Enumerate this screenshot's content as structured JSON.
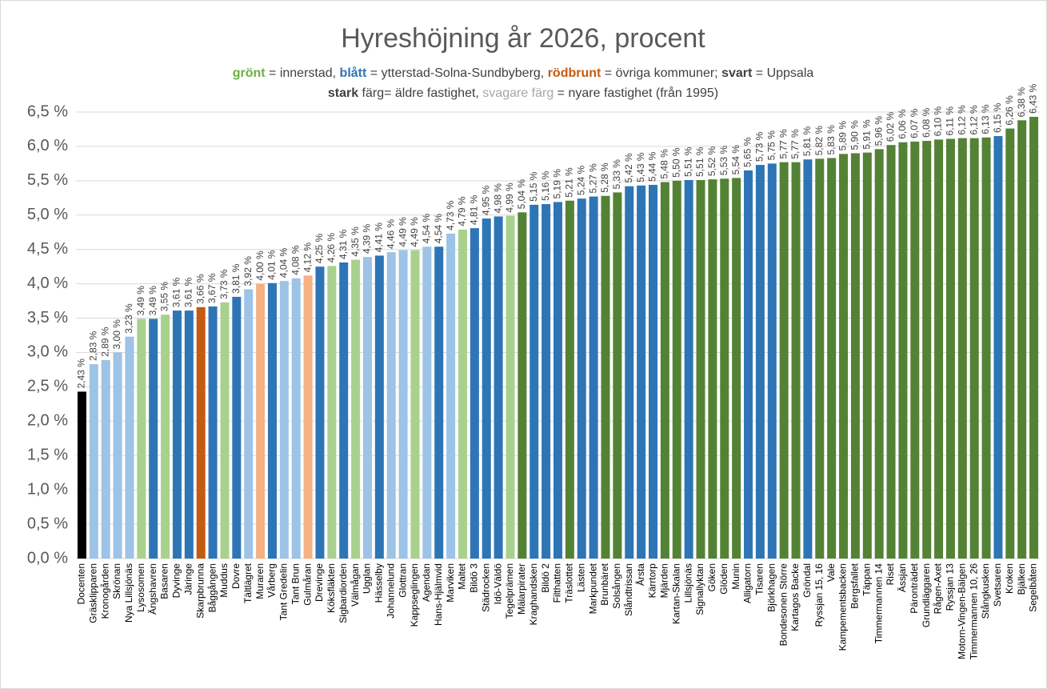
{
  "chart_data": {
    "type": "bar",
    "title": "Hyreshöjning år 2026, procent",
    "subtitle_lines": [
      [
        {
          "text": "grönt",
          "color": "#70ad47",
          "bold": true
        },
        {
          "text": " = innerstad, ",
          "color": "#404040",
          "bold": false
        },
        {
          "text": "blått",
          "color": "#2e75b6",
          "bold": true
        },
        {
          "text": " = ytterstad-Solna-Sundbyberg, ",
          "color": "#404040",
          "bold": false
        },
        {
          "text": "rödbrunt",
          "color": "#c55a11",
          "bold": true
        },
        {
          "text": " = övriga kommuner; ",
          "color": "#404040",
          "bold": false
        },
        {
          "text": "svart",
          "color": "#404040",
          "bold": true
        },
        {
          "text": " = Uppsala",
          "color": "#404040",
          "bold": false
        }
      ],
      [
        {
          "text": "stark",
          "color": "#404040",
          "bold": true
        },
        {
          "text": " färg= äldre fastighet, ",
          "color": "#404040",
          "bold": false
        },
        {
          "text": "svagare färg",
          "color": "#a6a6a6",
          "bold": false
        },
        {
          "text": " = nyare fastighet (från 1995)",
          "color": "#404040",
          "bold": false
        }
      ]
    ],
    "categories": [
      "Docenten",
      "Gräsklipparen",
      "Kronogården",
      "Skrönan",
      "Nya Lillsjönäs",
      "Lysosomen",
      "Ängshavren",
      "Basaren",
      "Dyvinge",
      "Järinge",
      "Skarpbrunna",
      "Båggången",
      "Muddus",
      "Dovre",
      "Tältlägret",
      "Muraren",
      "Vårberg",
      "Tant Gredelin",
      "Tant Brun",
      "Gulmåran",
      "Drevinge",
      "Köksfläkten",
      "Sigbardiorden",
      "Välmågan",
      "Ugglan",
      "Hässelby",
      "Johannelund",
      "Glottran",
      "Kappseglingen",
      "Agendan",
      "Hans-Hjälmvid",
      "Marviken",
      "Maltet",
      "Bildö 3",
      "Städrocken",
      "Idö-Väldö",
      "Tegelprämen",
      "Mälarpirater",
      "Kraghandsken",
      "Bildö 2",
      "Filthatten",
      "Träslottet",
      "Lästen",
      "Markpundet",
      "Brunbäret",
      "Solsången",
      "Slåndtrissan",
      "Årsta",
      "Kärrtorp",
      "Mjärden",
      "Kartan-Skalan",
      "Lillsjönäs",
      "Signallyktan",
      "Göken",
      "Glöden",
      "Munin",
      "Alligatorn",
      "Tisaren",
      "Björkhagen",
      "Bondesonen Större",
      "Kartagos Backe",
      "Gröndal",
      "Ryssjan 15, 16",
      "Vale",
      "Kampementsbacken",
      "Bergsfallet",
      "Täppan",
      "Timmermannen 14",
      "Riset",
      "Ässjan",
      "Päronträdet",
      "Grundläggaren",
      "Rågen-Axet",
      "Ryssjan 13",
      "Motorn-Vingen-Bälgen",
      "Timmermannen 10, 26",
      "Stångkusken",
      "Svetsaren",
      "Kroken",
      "Bjälken",
      "Segelbåten"
    ],
    "values": [
      2.43,
      2.83,
      2.89,
      3.0,
      3.23,
      3.49,
      3.49,
      3.55,
      3.61,
      3.61,
      3.66,
      3.67,
      3.73,
      3.81,
      3.92,
      4.0,
      4.01,
      4.04,
      4.08,
      4.12,
      4.25,
      4.26,
      4.31,
      4.35,
      4.39,
      4.41,
      4.46,
      4.49,
      4.49,
      4.54,
      4.54,
      4.73,
      4.79,
      4.81,
      4.95,
      4.98,
      4.99,
      5.04,
      5.15,
      5.16,
      5.19,
      5.21,
      5.24,
      5.27,
      5.28,
      5.33,
      5.42,
      5.43,
      5.44,
      5.48,
      5.5,
      5.51,
      5.51,
      5.52,
      5.53,
      5.54,
      5.65,
      5.73,
      5.75,
      5.77,
      5.77,
      5.81,
      5.82,
      5.83,
      5.89,
      5.9,
      5.91,
      5.96,
      6.02,
      6.06,
      6.07,
      6.08,
      6.1,
      6.11,
      6.12,
      6.12,
      6.13,
      6.15,
      6.26,
      6.38,
      6.43
    ],
    "value_labels": [
      "2,43 %",
      "2,83 %",
      "2,89 %",
      "3,00 %",
      "3,23 %",
      "3,49 %",
      "3,49 %",
      "3,55 %",
      "3,61 %",
      "3,61 %",
      "3,66 %",
      "3,67 %",
      "3,73 %",
      "3,81 %",
      "3,92 %",
      "4,00 %",
      "4,01 %",
      "4,04 %",
      "4,08 %",
      "4,12 %",
      "4,25 %",
      "4,26 %",
      "4,31 %",
      "4,35 %",
      "4,39 %",
      "4,41 %",
      "4,46 %",
      "4,49 %",
      "4,49 %",
      "4,54 %",
      "4,54 %",
      "4,73 %",
      "4,79 %",
      "4,81 %",
      "4,95 %",
      "4,98 %",
      "4,99 %",
      "5,04 %",
      "5,15 %",
      "5,16 %",
      "5,19 %",
      "5,21 %",
      "5,24 %",
      "5,27 %",
      "5,28 %",
      "5,33 %",
      "5,42 %",
      "5,43 %",
      "5,44 %",
      "5,48 %",
      "5,50 %",
      "5,51 %",
      "5,51 %",
      "5,52 %",
      "5,53 %",
      "5,54 %",
      "5,65 %",
      "5,73 %",
      "5,75 %",
      "5,77 %",
      "5,77 %",
      "5,81 %",
      "5,82 %",
      "5,83 %",
      "5,89 %",
      "5,90 %",
      "5,91 %",
      "5,96 %",
      "6,02 %",
      "6,06 %",
      "6,07 %",
      "6,08 %",
      "6,10 %",
      "6,11 %",
      "6,12 %",
      "6,12 %",
      "6,13 %",
      "6,15 %",
      "6,26 %",
      "6,38 %",
      "6,43 %"
    ],
    "colors": [
      "#000000",
      "#9dc3e6",
      "#9dc3e6",
      "#9dc3e6",
      "#9dc3e6",
      "#a9d18e",
      "#2e75b6",
      "#a9d18e",
      "#2e75b6",
      "#2e75b6",
      "#c55a11",
      "#2e75b6",
      "#a9d18e",
      "#2e75b6",
      "#9dc3e6",
      "#f4b183",
      "#2e75b6",
      "#9dc3e6",
      "#9dc3e6",
      "#f4b183",
      "#2e75b6",
      "#a9d18e",
      "#2e75b6",
      "#a9d18e",
      "#9dc3e6",
      "#2e75b6",
      "#9dc3e6",
      "#9dc3e6",
      "#a9d18e",
      "#9dc3e6",
      "#2e75b6",
      "#9dc3e6",
      "#a9d18e",
      "#2e75b6",
      "#2e75b6",
      "#2e75b6",
      "#a9d18e",
      "#548235",
      "#2e75b6",
      "#2e75b6",
      "#2e75b6",
      "#548235",
      "#2e75b6",
      "#2e75b6",
      "#548235",
      "#548235",
      "#2e75b6",
      "#2e75b6",
      "#2e75b6",
      "#548235",
      "#548235",
      "#2e75b6",
      "#548235",
      "#548235",
      "#548235",
      "#548235",
      "#2e75b6",
      "#2e75b6",
      "#2e75b6",
      "#548235",
      "#548235",
      "#2e75b6",
      "#548235",
      "#548235",
      "#548235",
      "#548235",
      "#548235",
      "#548235",
      "#548235",
      "#548235",
      "#548235",
      "#548235",
      "#548235",
      "#548235",
      "#548235",
      "#548235",
      "#548235",
      "#2e75b6",
      "#548235",
      "#548235",
      "#548235"
    ],
    "ylim": [
      0,
      6.5
    ],
    "yticks": [
      {
        "value": 0,
        "label": "0,0 %"
      },
      {
        "value": 0.5,
        "label": "0,5 %"
      },
      {
        "value": 1,
        "label": "1,0 %"
      },
      {
        "value": 1.5,
        "label": "1,5 %"
      },
      {
        "value": 2,
        "label": "2,0 %"
      },
      {
        "value": 2.5,
        "label": "2,5 %"
      },
      {
        "value": 3,
        "label": "3,0 %"
      },
      {
        "value": 3.5,
        "label": "3,5 %"
      },
      {
        "value": 4,
        "label": "4,0 %"
      },
      {
        "value": 4.5,
        "label": "4,5 %"
      },
      {
        "value": 5,
        "label": "5,0 %"
      },
      {
        "value": 5.5,
        "label": "5,5 %"
      },
      {
        "value": 6,
        "label": "6,0 %"
      },
      {
        "value": 6.5,
        "label": "6,5 %"
      }
    ],
    "grid": true
  }
}
